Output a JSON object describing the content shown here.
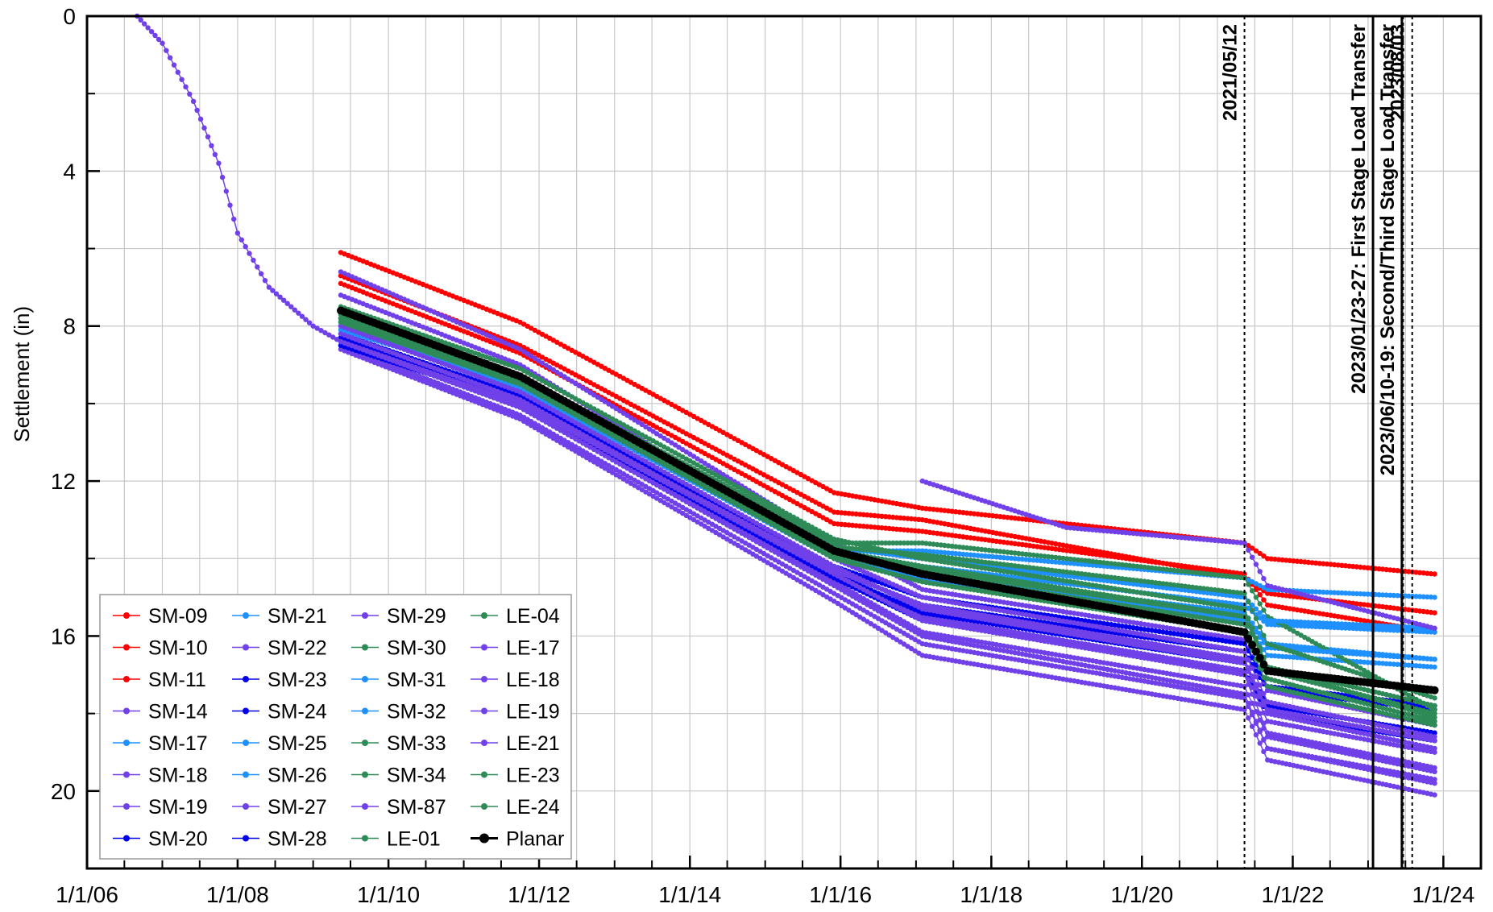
{
  "chart_data": {
    "type": "line",
    "title": "",
    "xlabel": "",
    "ylabel": "Settlement (in)",
    "x_axis": {
      "type": "date",
      "range": [
        "2006-01-01",
        "2024-07-01"
      ],
      "tick_labels": [
        "1/1/06",
        "1/1/08",
        "1/1/10",
        "1/1/12",
        "1/1/14",
        "1/1/16",
        "1/1/18",
        "1/1/20",
        "1/1/22",
        "1/1/24"
      ],
      "tick_dates": [
        "2006-01-01",
        "2008-01-01",
        "2010-01-01",
        "2012-01-01",
        "2014-01-01",
        "2016-01-01",
        "2018-01-01",
        "2020-01-01",
        "2022-01-01",
        "2024-01-01"
      ]
    },
    "y_axis": {
      "inverted": true,
      "range": [
        0,
        22
      ],
      "ticks": [
        0,
        4,
        8,
        12,
        16,
        20
      ]
    },
    "grid": true,
    "legend_position": "bottom-left",
    "annotations": [
      {
        "date": "2021-05-12",
        "style": "dotted",
        "label": "2021/05/12"
      },
      {
        "date": "2023-01-25",
        "style": "solid",
        "label": "2023/01/23-27: First Stage Load Transfer"
      },
      {
        "date": "2023-06-14",
        "style": "solid",
        "label": "2023/06/10-19: Second/Third Stage Load Transfer"
      },
      {
        "date": "2023-06-20",
        "style": "dotted",
        "label": ""
      },
      {
        "date": "2023-08-03",
        "style": "dotted",
        "label": "2023/08/03"
      }
    ],
    "series": [
      {
        "name": "SM-09",
        "color": "#ff0000",
        "x": [
          "2009-05-15",
          "2011-10-01",
          "2015-12-01",
          "2017-02-01",
          "2021-05-12",
          "2021-09-01",
          "2023-11-20"
        ],
        "y": [
          6.1,
          7.9,
          12.3,
          12.7,
          13.6,
          14.0,
          14.4
        ]
      },
      {
        "name": "SM-10",
        "color": "#ff0000",
        "x": [
          "2009-05-15",
          "2011-10-01",
          "2015-12-01",
          "2017-02-01",
          "2021-05-12",
          "2021-09-01",
          "2023-11-20"
        ],
        "y": [
          6.7,
          8.5,
          12.8,
          13.0,
          14.5,
          14.9,
          15.4
        ]
      },
      {
        "name": "SM-11",
        "color": "#ff0000",
        "x": [
          "2009-05-15",
          "2011-10-01",
          "2015-12-01",
          "2017-02-01",
          "2021-05-12",
          "2021-09-01",
          "2023-11-20"
        ],
        "y": [
          6.9,
          8.7,
          13.1,
          13.3,
          14.4,
          15.2,
          15.9
        ]
      },
      {
        "name": "SM-14",
        "color": "#7040e8",
        "x": [
          "2009-05-15",
          "2011-10-01",
          "2015-12-01",
          "2017-02-01",
          "2021-05-12",
          "2021-09-01",
          "2023-11-20"
        ],
        "y": [
          8.5,
          10.3,
          14.9,
          16.2,
          17.6,
          18.9,
          19.7
        ]
      },
      {
        "name": "SM-17",
        "color": "#1e90ff",
        "x": [
          "2009-05-15",
          "2011-10-01",
          "2015-12-01",
          "2017-02-01",
          "2021-05-12",
          "2021-09-01",
          "2023-11-20"
        ],
        "y": [
          7.8,
          9.4,
          13.8,
          13.8,
          14.5,
          14.8,
          15.0
        ]
      },
      {
        "name": "SM-18",
        "color": "#7040e8",
        "x": [
          "2009-05-15",
          "2011-10-01",
          "2015-12-01",
          "2017-02-01",
          "2021-05-12",
          "2021-09-01",
          "2023-11-20"
        ],
        "y": [
          8.6,
          10.4,
          15.1,
          16.5,
          17.9,
          19.2,
          20.1
        ]
      },
      {
        "name": "SM-19",
        "color": "#7040e8",
        "x": [
          "2009-05-15",
          "2011-10-01",
          "2015-12-01",
          "2017-02-01",
          "2021-05-12",
          "2021-09-01",
          "2023-11-20"
        ],
        "y": [
          8.4,
          10.1,
          14.6,
          15.9,
          17.3,
          18.6,
          19.5
        ]
      },
      {
        "name": "SM-20",
        "color": "#0000ee",
        "x": [
          "2009-05-15",
          "2011-10-01",
          "2015-12-01",
          "2017-02-01",
          "2021-05-12",
          "2021-09-01",
          "2023-11-20"
        ],
        "y": [
          8.5,
          10.0,
          14.5,
          15.6,
          16.9,
          18.0,
          18.7
        ]
      },
      {
        "name": "SM-21",
        "color": "#1e90ff",
        "x": [
          "2009-05-15",
          "2011-10-01",
          "2015-12-01",
          "2017-02-01",
          "2021-05-12",
          "2021-09-01",
          "2023-11-20"
        ],
        "y": [
          8.0,
          9.6,
          14.0,
          14.6,
          15.6,
          16.5,
          16.8
        ]
      },
      {
        "name": "SM-22",
        "color": "#7040e8",
        "x": [
          "2009-05-15",
          "2011-10-01",
          "2015-12-01",
          "2017-02-01",
          "2021-05-12",
          "2021-09-01",
          "2023-11-20"
        ],
        "y": [
          8.3,
          10.0,
          14.4,
          15.5,
          16.9,
          18.2,
          19.0
        ]
      },
      {
        "name": "SM-23",
        "color": "#0000ee",
        "x": [
          "2009-05-15",
          "2011-10-01",
          "2015-12-01",
          "2017-02-01",
          "2021-05-12",
          "2021-09-01",
          "2023-11-20"
        ],
        "y": [
          8.2,
          9.8,
          14.3,
          15.2,
          16.4,
          17.4,
          17.9
        ]
      },
      {
        "name": "SM-24",
        "color": "#0000ee",
        "x": [
          "2009-05-15",
          "2011-10-01",
          "2015-12-01",
          "2017-02-01",
          "2021-05-12",
          "2021-09-01",
          "2023-11-20"
        ],
        "y": [
          8.4,
          9.9,
          14.4,
          15.4,
          16.7,
          17.8,
          18.5
        ]
      },
      {
        "name": "SM-25",
        "color": "#1e90ff",
        "x": [
          "2009-05-15",
          "2011-10-01",
          "2015-12-01",
          "2017-02-01",
          "2021-05-12",
          "2021-09-01",
          "2023-11-20"
        ],
        "y": [
          8.0,
          9.5,
          13.9,
          14.4,
          15.4,
          16.2,
          16.6
        ]
      },
      {
        "name": "SM-26",
        "color": "#1e90ff",
        "x": [
          "2009-05-15",
          "2011-10-01",
          "2015-12-01",
          "2017-02-01",
          "2021-05-12",
          "2021-09-01",
          "2023-11-20"
        ],
        "y": [
          7.9,
          9.4,
          13.8,
          14.2,
          15.2,
          15.7,
          15.9
        ]
      },
      {
        "name": "SM-27",
        "color": "#7040e8",
        "x": [
          "2009-05-15",
          "2011-10-01",
          "2015-12-01",
          "2017-02-01",
          "2021-05-12",
          "2021-09-01",
          "2023-11-20"
        ],
        "y": [
          6.6,
          8.6,
          13.6,
          14.8,
          16.1,
          17.4,
          18.3
        ]
      },
      {
        "name": "SM-28",
        "color": "#0000ee",
        "x": [
          "2009-05-15",
          "2011-10-01",
          "2015-12-01",
          "2017-02-01",
          "2021-05-12",
          "2021-09-01",
          "2023-11-20"
        ],
        "y": [
          8.3,
          9.8,
          14.2,
          15.0,
          16.2,
          17.3,
          17.8
        ]
      },
      {
        "name": "SM-29",
        "color": "#7040e8",
        "x": [
          "2009-05-15",
          "2011-10-01",
          "2015-12-01",
          "2017-02-01",
          "2021-05-12",
          "2021-09-01",
          "2023-11-20"
        ],
        "y": [
          7.2,
          9.0,
          14.0,
          15.0,
          16.4,
          17.7,
          18.6
        ]
      },
      {
        "name": "SM-30",
        "color": "#2e8b57",
        "x": [
          "2009-05-15",
          "2011-10-01",
          "2015-12-01",
          "2017-02-01",
          "2021-05-12",
          "2021-09-01",
          "2023-11-20"
        ],
        "y": [
          7.6,
          9.3,
          13.6,
          13.6,
          14.5,
          15.5,
          17.9
        ]
      },
      {
        "name": "SM-31",
        "color": "#1e90ff",
        "x": [
          "2009-05-15",
          "2011-10-01",
          "2015-12-01",
          "2017-02-01",
          "2021-05-12",
          "2021-09-01",
          "2023-11-20"
        ],
        "y": [
          8.1,
          9.5,
          13.9,
          14.5,
          15.5,
          16.3,
          16.6
        ]
      },
      {
        "name": "SM-32",
        "color": "#1e90ff",
        "x": [
          "2009-05-15",
          "2011-10-01",
          "2015-12-01",
          "2017-02-01",
          "2021-05-12",
          "2021-09-01",
          "2023-11-20"
        ],
        "y": [
          7.9,
          9.4,
          13.7,
          14.0,
          15.0,
          15.6,
          15.8
        ]
      },
      {
        "name": "SM-33",
        "color": "#2e8b57",
        "x": [
          "2009-05-15",
          "2011-10-01",
          "2015-12-01",
          "2017-02-01",
          "2021-05-12",
          "2021-09-01",
          "2023-11-20"
        ],
        "y": [
          7.7,
          9.3,
          13.7,
          13.9,
          14.9,
          16.2,
          17.6
        ]
      },
      {
        "name": "SM-34",
        "color": "#2e8b57",
        "x": [
          "2009-05-15",
          "2011-10-01",
          "2015-12-01",
          "2017-02-01",
          "2021-05-12",
          "2021-09-01",
          "2023-11-20"
        ],
        "y": [
          7.8,
          9.4,
          13.9,
          14.3,
          15.5,
          16.8,
          17.8
        ]
      },
      {
        "name": "SM-87",
        "color": "#7040e8",
        "x": [
          "2017-02-01",
          "2019-01-01",
          "2021-05-12",
          "2021-09-01",
          "2023-11-20"
        ],
        "y": [
          12.0,
          13.2,
          13.6,
          14.7,
          15.8
        ]
      },
      {
        "name": "LE-01",
        "color": "#2e8b57",
        "x": [
          "2009-05-15",
          "2011-10-01",
          "2015-12-01",
          "2017-02-01",
          "2021-05-12",
          "2021-09-01",
          "2023-11-20"
        ],
        "y": [
          7.5,
          9.1,
          13.5,
          14.0,
          15.3,
          16.8,
          18.1
        ]
      },
      {
        "name": "LE-04",
        "color": "#2e8b57",
        "x": [
          "2009-05-15",
          "2011-10-01",
          "2015-12-01",
          "2017-02-01",
          "2021-05-12",
          "2021-09-01",
          "2023-11-20"
        ],
        "y": [
          7.9,
          9.5,
          14.0,
          14.6,
          15.9,
          17.3,
          18.3
        ]
      },
      {
        "name": "LE-17",
        "color": "#7040e8",
        "x": [
          "2009-05-15",
          "2011-10-01",
          "2015-12-01",
          "2017-02-01",
          "2021-05-12",
          "2021-09-01",
          "2023-11-20"
        ],
        "y": [
          8.2,
          9.9,
          14.4,
          15.6,
          17.0,
          18.5,
          19.4
        ]
      },
      {
        "name": "LE-18",
        "color": "#7040e8",
        "x": [
          "2009-05-15",
          "2011-10-01",
          "2015-12-01",
          "2017-02-01",
          "2021-05-12",
          "2021-09-01",
          "2023-11-20"
        ],
        "y": [
          8.4,
          10.1,
          14.7,
          16.0,
          17.5,
          18.9,
          19.8
        ]
      },
      {
        "name": "LE-19",
        "color": "#7040e8",
        "x": [
          "2009-05-15",
          "2011-10-01",
          "2015-12-01",
          "2017-02-01",
          "2021-05-12",
          "2021-09-01",
          "2023-11-20"
        ],
        "y": [
          8.0,
          9.7,
          14.2,
          15.3,
          16.7,
          18.0,
          18.9
        ]
      },
      {
        "name": "LE-21",
        "color": "#7040e8",
        "x": [
          "2006-09-01",
          "2007-01-01",
          "2007-06-01",
          "2007-10-01",
          "2008-01-01",
          "2008-06-01",
          "2009-01-01",
          "2009-05-15",
          "2011-10-01",
          "2015-12-01",
          "2017-02-01",
          "2021-05-12",
          "2021-09-01",
          "2023-11-20"
        ],
        "y": [
          0.0,
          0.7,
          2.2,
          3.8,
          5.6,
          7.0,
          8.0,
          8.4,
          10.0,
          14.3,
          15.2,
          16.6,
          17.9,
          18.7
        ]
      },
      {
        "name": "LE-23",
        "color": "#2e8b57",
        "x": [
          "2009-05-15",
          "2011-10-01",
          "2015-12-01",
          "2017-02-01",
          "2021-05-12",
          "2021-09-01",
          "2023-11-20"
        ],
        "y": [
          7.8,
          9.4,
          13.8,
          14.2,
          15.5,
          16.9,
          18.0
        ]
      },
      {
        "name": "LE-24",
        "color": "#2e8b57",
        "x": [
          "2009-05-15",
          "2011-10-01",
          "2015-12-01",
          "2017-02-01",
          "2021-05-12",
          "2021-09-01",
          "2023-11-20"
        ],
        "y": [
          7.9,
          9.5,
          13.9,
          14.4,
          15.7,
          17.1,
          18.2
        ]
      },
      {
        "name": "Planar",
        "color": "#000000",
        "x": [
          "2009-05-15",
          "2011-10-01",
          "2015-12-01",
          "2017-02-01",
          "2021-05-12",
          "2021-09-01",
          "2023-11-20"
        ],
        "y": [
          7.6,
          9.3,
          13.8,
          14.4,
          15.9,
          16.9,
          17.4
        ]
      }
    ]
  }
}
